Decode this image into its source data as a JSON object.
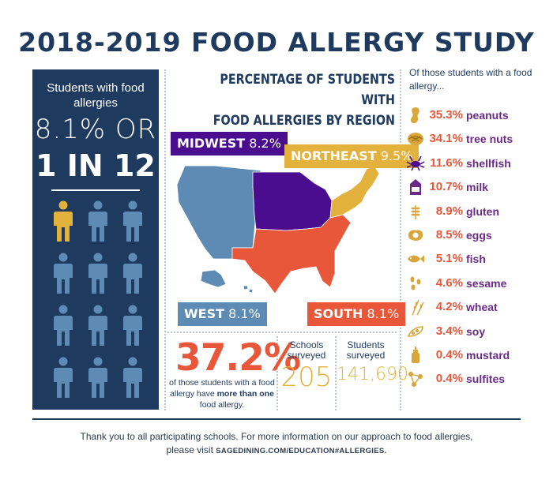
{
  "title": "2018-2019 FOOD ALLERGY STUDY",
  "left_panel": {
    "heading": "Students with food allergies",
    "rate_text": "8.1% OR",
    "ratio_text": "1 IN 12",
    "highlight_color": "#e3b23c",
    "figure_color": "#5d8bb3",
    "figure_total": 12,
    "figure_highlighted": 1
  },
  "map": {
    "title_line1": "PERCENTAGE OF STUDENTS WITH",
    "title_line2": "FOOD ALLERGIES BY REGION"
  },
  "chart_data": [
    {
      "type": "map",
      "regions": [
        {
          "name": "MIDWEST",
          "value": 8.2,
          "value_label": "8.2%",
          "color": "#4b0d8f"
        },
        {
          "name": "NORTHEAST",
          "value": 9.5,
          "value_label": "9.5%",
          "color": "#e3b23c"
        },
        {
          "name": "WEST",
          "value": 8.1,
          "value_label": "8.1%",
          "color": "#5d8bb3"
        },
        {
          "name": "SOUTH",
          "value": 8.1,
          "value_label": "8.1%",
          "color": "#e8573a"
        }
      ]
    },
    {
      "type": "bar",
      "heading": "Of those students with a food allergy...",
      "items": [
        {
          "label": "peanuts",
          "value": 35.3,
          "value_label": "35.3%",
          "icon": "peanut-icon"
        },
        {
          "label": "tree nuts",
          "value": 34.1,
          "value_label": "34.1%",
          "icon": "walnut-icon"
        },
        {
          "label": "shellfish",
          "value": 11.6,
          "value_label": "11.6%",
          "icon": "crab-icon"
        },
        {
          "label": "milk",
          "value": 10.7,
          "value_label": "10.7%",
          "icon": "milk-carton-icon"
        },
        {
          "label": "gluten",
          "value": 8.9,
          "value_label": "8.9%",
          "icon": "wheat-stalk-icon"
        },
        {
          "label": "eggs",
          "value": 8.5,
          "value_label": "8.5%",
          "icon": "fried-egg-icon"
        },
        {
          "label": "fish",
          "value": 5.1,
          "value_label": "5.1%",
          "icon": "fish-icon"
        },
        {
          "label": "sesame",
          "value": 4.6,
          "value_label": "4.6%",
          "icon": "sesame-seeds-icon"
        },
        {
          "label": "wheat",
          "value": 4.2,
          "value_label": "4.2%",
          "icon": "wheat-icon"
        },
        {
          "label": "soy",
          "value": 3.4,
          "value_label": "3.4%",
          "icon": "soybean-icon"
        },
        {
          "label": "mustard",
          "value": 0.4,
          "value_label": "0.4%",
          "icon": "mustard-bottle-icon"
        },
        {
          "label": "sulfites",
          "value": 0.4,
          "value_label": "0.4%",
          "icon": "molecule-icon"
        }
      ]
    }
  ],
  "stats": {
    "multiple_pct": "37.2%",
    "multiple_text_pre": "of those students with a food allergy have",
    "multiple_text_bold": "more than one",
    "multiple_text_post": "food allergy.",
    "schools_label_1": "Schools",
    "schools_label_2": "surveyed",
    "schools_value": "205",
    "students_label_1": "Students",
    "students_label_2": "surveyed",
    "students_value": "141,690"
  },
  "footer": {
    "line1": "Thank you to all participating schools. For more information on our approach to food allergies,",
    "line2_pre": "please visit",
    "site": "sagedining.com/education#allergies."
  },
  "colors": {
    "navy": "#1f3a5f",
    "orange": "#e8573a",
    "purple": "#6b2a86",
    "gold": "#e3b23c",
    "blue": "#5d8bb3"
  }
}
